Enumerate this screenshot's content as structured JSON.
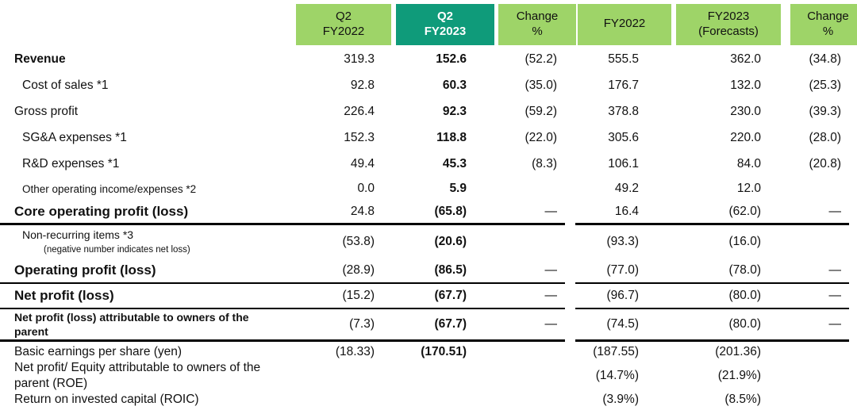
{
  "colors": {
    "header_light": "#9ed468",
    "header_dark": "#0f9b7a",
    "header_dark_text": "#ffffff",
    "text": "#111111",
    "line": "#000000"
  },
  "table": {
    "title": "Financial results summary table",
    "header": [
      {
        "label": "Q2\nFY2022",
        "variant": "light"
      },
      {
        "label": "Q2\nFY2023",
        "variant": "dark"
      },
      {
        "label": "Change\n%",
        "variant": "light"
      },
      {
        "label": "FY2022",
        "variant": "light"
      },
      {
        "label": "FY2023\n(Forecasts)",
        "variant": "light"
      },
      {
        "label": "Change\n%",
        "variant": "light"
      }
    ],
    "rows": [
      {
        "label": "Revenue",
        "style": "bold",
        "height": "h33",
        "border": "none",
        "values": [
          "319.3",
          "152.6",
          "(52.2)",
          "555.5",
          "362.0",
          "(34.8)"
        ]
      },
      {
        "label": "Cost of sales *1",
        "style": "ind1",
        "height": "h33",
        "border": "none",
        "values": [
          "92.8",
          "60.3",
          "(35.0)",
          "176.7",
          "132.0",
          "(25.3)"
        ]
      },
      {
        "label": "Gross profit",
        "style": "",
        "height": "h33",
        "border": "none",
        "values": [
          "226.4",
          "92.3",
          "(59.2)",
          "378.8",
          "230.0",
          "(39.3)"
        ]
      },
      {
        "label": "SG&A expenses *1",
        "style": "ind1",
        "height": "h33",
        "border": "none",
        "values": [
          "152.3",
          "118.8",
          "(22.0)",
          "305.6",
          "220.0",
          "(28.0)"
        ]
      },
      {
        "label": "R&D expenses *1",
        "style": "ind1",
        "height": "h33",
        "border": "none",
        "values": [
          "49.4",
          "45.3",
          "(8.3)",
          "106.1",
          "84.0",
          "(20.8)"
        ]
      },
      {
        "label": "Other operating income/expenses *2",
        "style": "ind1 sm",
        "height": "h30",
        "border": "none",
        "values": [
          "0.0",
          "5.9",
          "",
          "49.2",
          "12.0",
          ""
        ]
      },
      {
        "label": "Core operating profit (loss)",
        "style": "bold lg",
        "height": "h31",
        "border": "thick",
        "values": [
          "24.8",
          "(65.8)",
          "—",
          "16.4",
          "(62.0)",
          "—"
        ]
      },
      {
        "label": "Non-recurring items  *3",
        "note": "(negative number indicates net loss)",
        "style": "ind1 nr",
        "height": "h44",
        "border": "none",
        "values": [
          "(53.8)",
          "(20.6)",
          "",
          "(93.3)",
          "(16.0)",
          ""
        ]
      },
      {
        "label": "Operating profit (loss)",
        "style": "bold lg",
        "height": "h32",
        "border": "thin",
        "values": [
          "(28.9)",
          "(86.5)",
          "—",
          "(77.0)",
          "(78.0)",
          "—"
        ]
      },
      {
        "label": "Net profit (loss)",
        "style": "bold lg",
        "height": "h32",
        "border": "thin",
        "values": [
          "(15.2)",
          "(67.7)",
          "—",
          "(96.7)",
          "(80.0)",
          "—"
        ]
      },
      {
        "label": "Net profit (loss) attributable to owners of the parent",
        "style": "smb",
        "height": "h41",
        "border": "thick",
        "values": [
          "(7.3)",
          "(67.7)",
          "—",
          "(74.5)",
          "(80.0)",
          "—"
        ]
      },
      {
        "label": "Basic earnings per share (yen)",
        "style": "",
        "height": "h26",
        "border": "none",
        "values": [
          "(18.33)",
          "(170.51)",
          "",
          "(187.55)",
          "(201.36)",
          ""
        ]
      },
      {
        "label": "Net profit/ Equity attributable to owners of the parent (ROE)",
        "style": "wrap",
        "height": "h37",
        "border": "none",
        "values": [
          "",
          "",
          "",
          "(14.7%)",
          "(21.9%)",
          ""
        ]
      },
      {
        "label": "Return on invested capital (ROIC)",
        "style": "",
        "height": "h27",
        "border": "none",
        "values": [
          "",
          "",
          "",
          "(3.9%)",
          "(8.5%)",
          ""
        ]
      }
    ]
  }
}
